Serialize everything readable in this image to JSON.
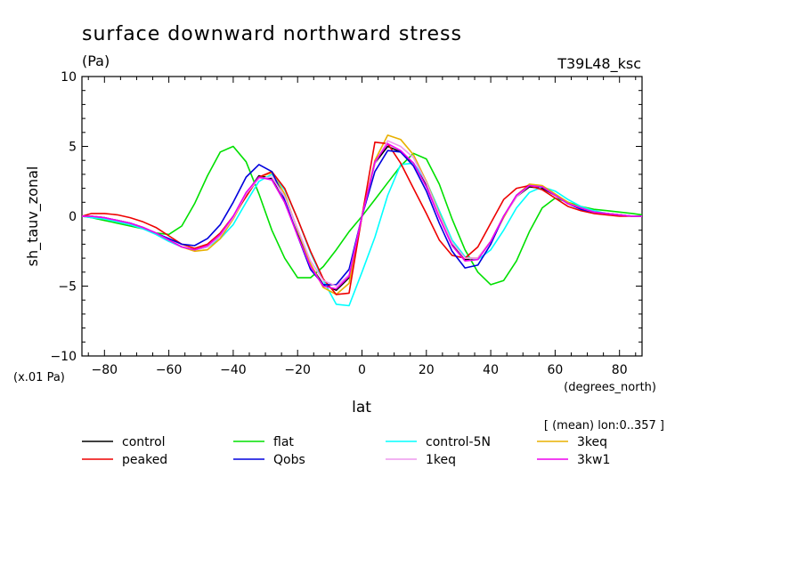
{
  "chart_data": {
    "type": "line",
    "title": "surface downward northward stress",
    "units": "(Pa)",
    "experiment": "T39L48_ksc",
    "ylabel": "sh_tauv_zonal",
    "ylabel_scale": "(x.01 Pa)",
    "xlabel": "lat",
    "xunits": "(degrees_north)",
    "averaging_note": "[ (mean) lon:0..357 ]",
    "xlim": [
      -87,
      87
    ],
    "ylim": [
      -10,
      10
    ],
    "xticks": [
      -80,
      -60,
      -40,
      -20,
      0,
      20,
      40,
      60,
      80
    ],
    "yticks": [
      -10,
      -5,
      0,
      5,
      10
    ],
    "x": [
      -87,
      -84,
      -80,
      -76,
      -72,
      -68,
      -64,
      -60,
      -56,
      -52,
      -48,
      -44,
      -40,
      -36,
      -32,
      -28,
      -24,
      -20,
      -16,
      -12,
      -8,
      -4,
      0,
      4,
      8,
      12,
      16,
      20,
      24,
      28,
      32,
      36,
      40,
      44,
      48,
      52,
      56,
      60,
      64,
      68,
      72,
      76,
      80,
      84,
      87
    ],
    "series": [
      {
        "name": "control",
        "color": "#000000",
        "values": [
          0.0,
          0.0,
          -0.1,
          -0.3,
          -0.5,
          -0.8,
          -1.2,
          -1.7,
          -2.2,
          -2.4,
          -2.2,
          -1.4,
          -0.1,
          1.6,
          2.9,
          2.7,
          1.0,
          -1.3,
          -3.5,
          -4.9,
          -5.3,
          -4.4,
          0.0,
          3.8,
          5.0,
          4.6,
          3.8,
          2.2,
          0.0,
          -2.0,
          -3.1,
          -3.0,
          -1.8,
          0.0,
          1.4,
          2.1,
          2.0,
          1.5,
          0.9,
          0.6,
          0.3,
          0.2,
          0.1,
          0.0,
          0.0
        ]
      },
      {
        "name": "flat",
        "color": "#00e000",
        "values": [
          0.0,
          -0.1,
          -0.3,
          -0.5,
          -0.7,
          -0.9,
          -1.2,
          -1.3,
          -0.7,
          0.9,
          2.9,
          4.6,
          5.0,
          3.9,
          1.6,
          -1.0,
          -3.0,
          -4.4,
          -4.4,
          -3.6,
          -2.4,
          -1.1,
          0.0,
          1.2,
          2.4,
          3.6,
          4.5,
          4.1,
          2.3,
          -0.2,
          -2.4,
          -4.0,
          -4.9,
          -4.6,
          -3.2,
          -1.1,
          0.6,
          1.3,
          1.0,
          0.7,
          0.5,
          0.4,
          0.3,
          0.2,
          0.1
        ]
      },
      {
        "name": "control-5N",
        "color": "#00ffff",
        "values": [
          0.0,
          -0.1,
          -0.2,
          -0.4,
          -0.6,
          -0.9,
          -1.3,
          -1.8,
          -2.2,
          -2.4,
          -2.2,
          -1.6,
          -0.6,
          1.0,
          2.5,
          3.0,
          1.9,
          -0.2,
          -2.6,
          -4.6,
          -6.3,
          -6.4,
          -4.0,
          -1.5,
          1.5,
          3.7,
          3.8,
          2.5,
          0.4,
          -1.7,
          -2.9,
          -3.1,
          -2.4,
          -1.0,
          0.6,
          1.7,
          2.1,
          1.8,
          1.2,
          0.7,
          0.4,
          0.2,
          0.1,
          0.0,
          0.0
        ]
      },
      {
        "name": "3keq",
        "color": "#e8b000",
        "values": [
          0.0,
          0.0,
          -0.1,
          -0.3,
          -0.5,
          -0.8,
          -1.2,
          -1.7,
          -2.2,
          -2.5,
          -2.4,
          -1.6,
          -0.2,
          1.5,
          2.8,
          3.1,
          1.6,
          -1.0,
          -3.4,
          -5.1,
          -5.6,
          -4.8,
          0.0,
          4.0,
          5.8,
          5.5,
          4.4,
          2.5,
          0.2,
          -1.9,
          -3.0,
          -3.0,
          -1.8,
          -0.1,
          1.5,
          2.3,
          2.2,
          1.6,
          1.0,
          0.6,
          0.3,
          0.2,
          0.1,
          0.0,
          0.0
        ]
      },
      {
        "name": "peaked",
        "color": "#ee0000",
        "values": [
          0.0,
          0.2,
          0.2,
          0.1,
          -0.1,
          -0.4,
          -0.8,
          -1.4,
          -2.0,
          -2.3,
          -2.0,
          -1.2,
          0.0,
          1.4,
          2.8,
          3.2,
          2.0,
          -0.2,
          -2.5,
          -4.5,
          -5.6,
          -5.5,
          0.0,
          5.3,
          5.2,
          3.8,
          2.0,
          0.2,
          -1.7,
          -2.8,
          -3.0,
          -2.2,
          -0.5,
          1.2,
          2.0,
          2.2,
          1.9,
          1.3,
          0.7,
          0.4,
          0.2,
          0.1,
          0.0,
          0.0,
          0.0
        ]
      },
      {
        "name": "Qobs",
        "color": "#0000dd",
        "values": [
          0.0,
          0.0,
          -0.1,
          -0.3,
          -0.5,
          -0.8,
          -1.2,
          -1.6,
          -2.0,
          -2.1,
          -1.6,
          -0.6,
          1.0,
          2.8,
          3.7,
          3.2,
          1.2,
          -1.4,
          -3.8,
          -4.9,
          -4.9,
          -3.8,
          0.0,
          3.2,
          4.7,
          4.6,
          3.6,
          1.8,
          -0.5,
          -2.5,
          -3.7,
          -3.5,
          -2.0,
          0.0,
          1.5,
          2.2,
          2.1,
          1.5,
          0.9,
          0.5,
          0.3,
          0.2,
          0.1,
          0.0,
          0.0
        ]
      },
      {
        "name": "1keq",
        "color": "#ee99ee",
        "values": [
          0.0,
          0.0,
          -0.1,
          -0.3,
          -0.5,
          -0.8,
          -1.2,
          -1.7,
          -2.2,
          -2.4,
          -2.2,
          -1.4,
          -0.1,
          1.6,
          2.7,
          2.8,
          1.4,
          -0.9,
          -3.2,
          -4.6,
          -5.0,
          -4.2,
          0.0,
          3.8,
          5.4,
          5.0,
          4.2,
          2.4,
          0.1,
          -1.9,
          -3.0,
          -3.0,
          -1.8,
          0.0,
          1.4,
          2.2,
          2.1,
          1.5,
          0.9,
          0.6,
          0.3,
          0.2,
          0.1,
          0.0,
          0.0
        ]
      },
      {
        "name": "3kw1",
        "color": "#ee00ee",
        "values": [
          0.0,
          0.0,
          -0.1,
          -0.3,
          -0.5,
          -0.8,
          -1.2,
          -1.7,
          -2.2,
          -2.4,
          -2.1,
          -1.3,
          0.0,
          1.7,
          2.8,
          2.6,
          1.0,
          -1.4,
          -3.6,
          -5.0,
          -5.2,
          -4.3,
          0.0,
          3.9,
          5.2,
          4.7,
          3.8,
          2.1,
          -0.1,
          -2.1,
          -3.2,
          -3.1,
          -1.8,
          0.0,
          1.5,
          2.2,
          2.1,
          1.5,
          0.9,
          0.6,
          0.3,
          0.2,
          0.1,
          0.0,
          0.0
        ]
      }
    ],
    "legend": [
      {
        "name": "control",
        "color": "#000000"
      },
      {
        "name": "flat",
        "color": "#00e000"
      },
      {
        "name": "control-5N",
        "color": "#00ffff"
      },
      {
        "name": "3keq",
        "color": "#e8b000"
      },
      {
        "name": "peaked",
        "color": "#ee0000"
      },
      {
        "name": "Qobs",
        "color": "#0000dd"
      },
      {
        "name": "1keq",
        "color": "#ee99ee"
      },
      {
        "name": "3kw1",
        "color": "#ee00ee"
      }
    ],
    "legend_placement": "bottom",
    "grid": false
  }
}
